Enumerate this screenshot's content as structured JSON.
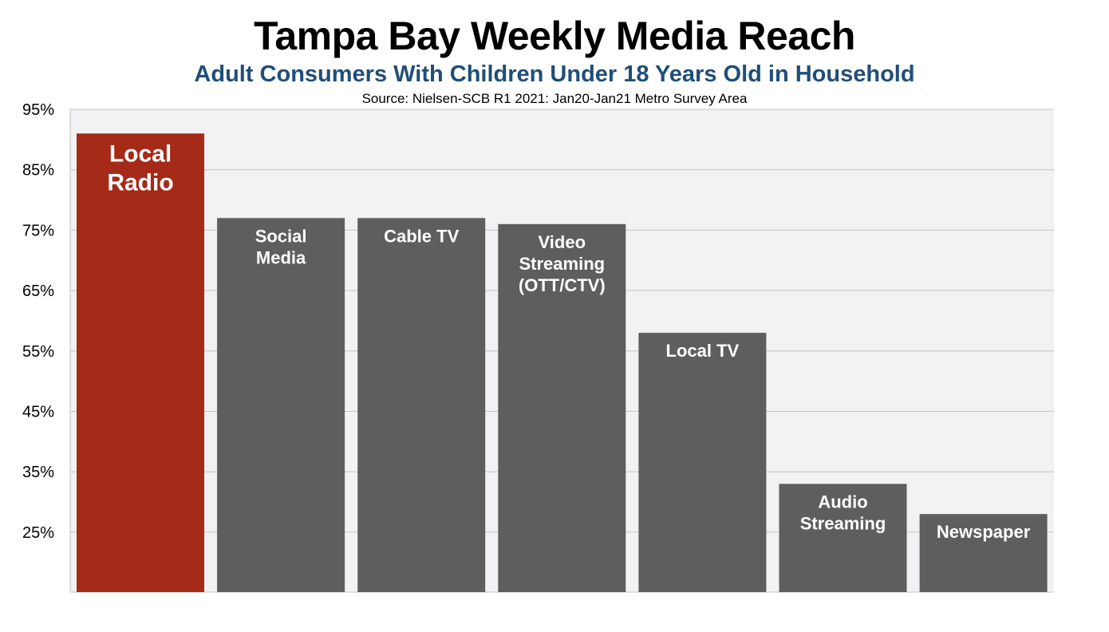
{
  "header": {
    "title": "Tampa Bay Weekly Media Reach",
    "subtitle": "Adult Consumers With Children Under 18 Years Old in Household",
    "source": "Source: Nielsen-SCB R1 2021: Jan20-Jan21 Metro Survey Area"
  },
  "colors": {
    "subtitle": "#1F4E79",
    "highlight_bar": "#A52A17",
    "bar": "#5E5E5E",
    "plot_background": "#F2F2F4",
    "gridline": "#C4C4C4",
    "bar_label": "#FFFFFF"
  },
  "chart_data": {
    "type": "bar",
    "title": "Tampa Bay Weekly Media Reach",
    "subtitle": "Adult Consumers With Children Under 18 Years Old in Household",
    "xlabel": "",
    "ylabel": "",
    "ylim": [
      15,
      95
    ],
    "yticks": [
      25,
      35,
      45,
      55,
      65,
      75,
      85,
      95
    ],
    "ytick_labels": [
      "25%",
      "35%",
      "45%",
      "55%",
      "65%",
      "75%",
      "85%",
      "95%"
    ],
    "grid": true,
    "legend": "none",
    "categories": [
      "Local Radio",
      "Social Media",
      "Cable TV",
      "Video Streaming (OTT/CTV)",
      "Local TV",
      "Audio Streaming",
      "Newspaper"
    ],
    "values": [
      91,
      77,
      77,
      76,
      58,
      33,
      28
    ],
    "bar_labels": [
      [
        "Local",
        "Radio"
      ],
      [
        "Social",
        "Media"
      ],
      [
        "Cable TV"
      ],
      [
        "Video",
        "Streaming",
        "(OTT/CTV)"
      ],
      [
        "Local TV"
      ],
      [
        "Audio",
        "Streaming"
      ],
      [
        "Newspaper"
      ]
    ],
    "highlight_index": 0
  }
}
